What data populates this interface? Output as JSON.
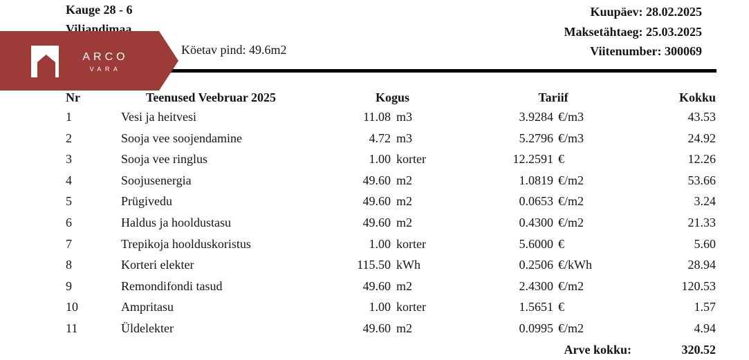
{
  "colors": {
    "brand_red": "#9d3b38",
    "rule_black": "#000000",
    "text": "#141414"
  },
  "header": {
    "address_line1": "Kauge 28 - 6",
    "address_line2": "Viljandimaa",
    "heated_area": "Köetav pind: 49.6m2",
    "date_line": "Kuupäev: 28.02.2025",
    "due_line": "Maksetähtaeg: 25.03.2025",
    "reference_line": "Viitenumber: 300069"
  },
  "logo": {
    "brand": "ARCO",
    "sub_brand": "VARA",
    "icon": "house-icon"
  },
  "table": {
    "columns": [
      "Nr",
      "Teenused Veebruar 2025",
      "Kogus",
      "Tariif",
      "Kokku"
    ],
    "rows": [
      {
        "nr": "1",
        "name": "Vesi ja heitvesi",
        "qty": "11.08",
        "qty_unit": "m3",
        "tariff": "3.9284",
        "tariff_unit": "€/m3",
        "total": "43.53"
      },
      {
        "nr": "2",
        "name": "Sooja vee soojendamine",
        "qty": "4.72",
        "qty_unit": "m3",
        "tariff": "5.2796",
        "tariff_unit": "€/m3",
        "total": "24.92"
      },
      {
        "nr": "3",
        "name": "Sooja vee ringlus",
        "qty": "1.00",
        "qty_unit": "korter",
        "tariff": "12.2591",
        "tariff_unit": "€",
        "total": "12.26"
      },
      {
        "nr": "4",
        "name": "Soojusenergia",
        "qty": "49.60",
        "qty_unit": "m2",
        "tariff": "1.0819",
        "tariff_unit": "€/m2",
        "total": "53.66"
      },
      {
        "nr": "5",
        "name": "Prügivedu",
        "qty": "49.60",
        "qty_unit": "m2",
        "tariff": "0.0653",
        "tariff_unit": "€/m2",
        "total": "3.24"
      },
      {
        "nr": "6",
        "name": "Haldus ja hooldustasu",
        "qty": "49.60",
        "qty_unit": "m2",
        "tariff": "0.4300",
        "tariff_unit": "€/m2",
        "total": "21.33"
      },
      {
        "nr": "7",
        "name": "Trepikoja hoolduskoristus",
        "qty": "1.00",
        "qty_unit": "korter",
        "tariff": "5.6000",
        "tariff_unit": "€",
        "total": "5.60"
      },
      {
        "nr": "8",
        "name": "Korteri elekter",
        "qty": "115.50",
        "qty_unit": "kWh",
        "tariff": "0.2506",
        "tariff_unit": "€/kWh",
        "total": "28.94"
      },
      {
        "nr": "9",
        "name": "Remondifondi tasud",
        "qty": "49.60",
        "qty_unit": "m2",
        "tariff": "2.4300",
        "tariff_unit": "€/m2",
        "total": "120.53"
      },
      {
        "nr": "10",
        "name": "Ampritasu",
        "qty": "1.00",
        "qty_unit": "korter",
        "tariff": "1.5651",
        "tariff_unit": "€",
        "total": "1.57"
      },
      {
        "nr": "11",
        "name": "Üldelekter",
        "qty": "49.60",
        "qty_unit": "m2",
        "tariff": "0.0995",
        "tariff_unit": "€/m2",
        "total": "4.94"
      }
    ],
    "total_label": "Arve kokku:",
    "total_value": "320.52"
  }
}
